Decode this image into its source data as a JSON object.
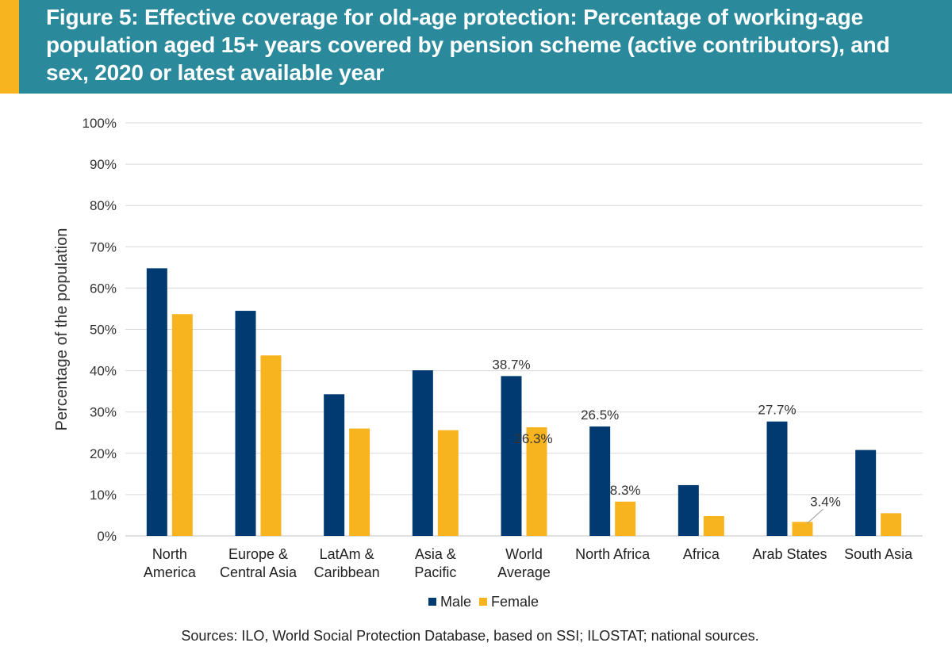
{
  "header": {
    "title": "Figure 5: Effective coverage for old-age protection: Percentage of working-age population aged 15+ years covered by pension scheme (active contributors), and sex, 2020 or latest available year"
  },
  "colors": {
    "male": "#003a70",
    "female": "#f7b41e",
    "header_bg": "#2a8a9c",
    "accent": "#f7b41e"
  },
  "chart_data": {
    "type": "bar",
    "title": "Figure 5: Effective coverage for old-age protection: Percentage of working-age population aged 15+ years covered by pension scheme (active contributors), and sex, 2020 or latest available year",
    "ylabel": "Percentage of the population",
    "ylim": [
      0,
      100
    ],
    "yticks": [
      "0%",
      "10%",
      "20%",
      "30%",
      "40%",
      "50%",
      "60%",
      "70%",
      "80%",
      "90%",
      "100%"
    ],
    "grid": true,
    "legend_position": "bottom",
    "categories": [
      [
        "North",
        "America"
      ],
      [
        "Europe &",
        "Central Asia"
      ],
      [
        "LatAm &",
        "Caribbean"
      ],
      [
        "Asia &",
        "Pacific"
      ],
      [
        "World",
        "Average"
      ],
      [
        "North Africa"
      ],
      [
        "Africa"
      ],
      [
        "Arab States"
      ],
      [
        "South Asia"
      ]
    ],
    "series": [
      {
        "name": "Male",
        "values": [
          64.8,
          54.5,
          34.3,
          40.1,
          38.7,
          26.5,
          12.3,
          27.7,
          20.8
        ],
        "labels": [
          null,
          null,
          null,
          null,
          "38.7%",
          "26.5%",
          null,
          "27.7%",
          null
        ]
      },
      {
        "name": "Female",
        "values": [
          53.7,
          43.7,
          26.0,
          25.6,
          26.3,
          8.3,
          4.8,
          3.4,
          5.5
        ],
        "labels": [
          null,
          null,
          null,
          null,
          "26.3%",
          "8.3%",
          null,
          "3.4%",
          null
        ]
      }
    ]
  },
  "legend": {
    "male": "Male",
    "female": "Female"
  },
  "source": "Sources: ILO, World Social Protection Database, based on SSI; ILOSTAT; national sources."
}
